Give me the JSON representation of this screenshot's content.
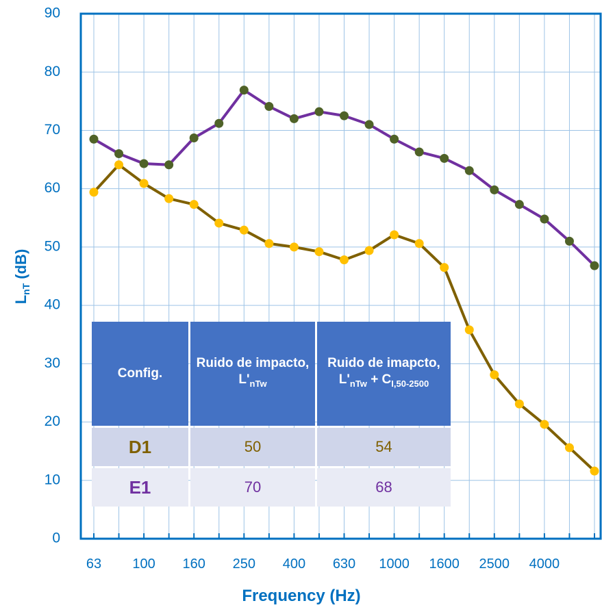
{
  "chart_data": {
    "type": "line",
    "x_label": "Frequency (Hz)",
    "y_label": {
      "symbol": "L",
      "sub": "nT",
      "unit": "(dB)"
    },
    "categories": [
      "63",
      null,
      "100",
      null,
      "160",
      null,
      "250",
      null,
      "400",
      null,
      "630",
      null,
      "1000",
      null,
      "1600",
      null,
      "2500",
      null,
      "4000",
      null,
      null
    ],
    "series": [
      {
        "name": "D1",
        "color": "#7f6000",
        "marker_color": "#ffc000",
        "values": [
          59.4,
          64.1,
          60.9,
          58.3,
          57.3,
          54.1,
          52.9,
          50.6,
          50,
          49.2,
          47.8,
          49.4,
          52.1,
          50.6,
          46.5,
          35.8,
          28.1,
          23.1,
          19.6,
          15.6,
          11.6
        ]
      },
      {
        "name": "E1",
        "color": "#7030a0",
        "marker_color": "#4f6228",
        "values": [
          68.5,
          66,
          64.3,
          64.1,
          68.7,
          71.2,
          76.9,
          74.1,
          72,
          73.2,
          72.5,
          71,
          68.5,
          66.3,
          65.2,
          63.1,
          59.8,
          57.3,
          54.8,
          51,
          46.8
        ]
      }
    ],
    "ylim": [
      0,
      90
    ],
    "yticks": [
      0,
      10,
      20,
      30,
      40,
      50,
      60,
      70,
      80,
      90
    ],
    "grid": true,
    "table": {
      "headers": [
        {
          "text": "Config."
        },
        {
          "text": "Ruido de impacto,",
          "symbol": "L'",
          "sub": "nTw"
        },
        {
          "text": "Ruido de imapcto,",
          "symbol": "L'",
          "sub": "nTw",
          "plus": "+ C",
          "sub2": "I,50-2500"
        }
      ],
      "rows": [
        [
          50,
          54
        ],
        [
          70,
          68
        ]
      ]
    }
  }
}
